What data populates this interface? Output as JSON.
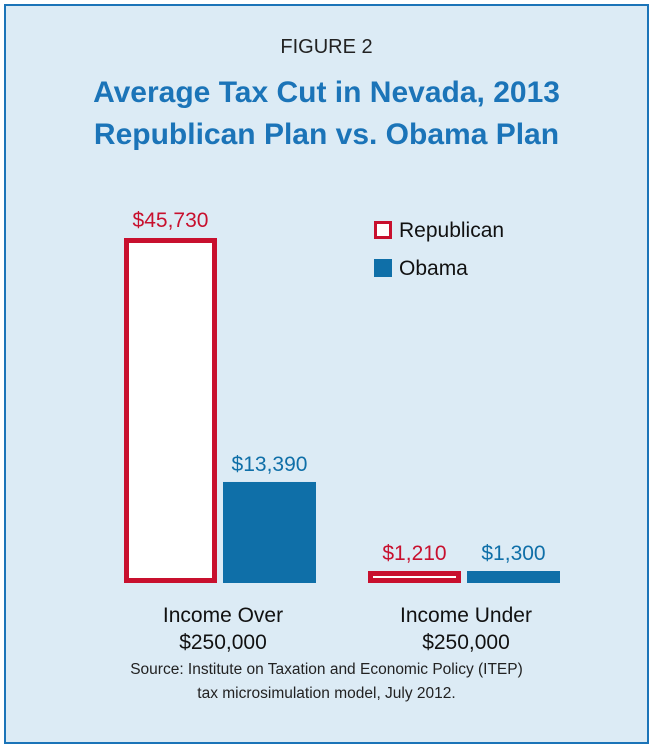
{
  "figure_label": "FIGURE 2",
  "title_line1": "Average Tax Cut in Nevada, 2013",
  "title_line2": "Republican Plan vs. Obama Plan",
  "source_line1": "Source: Institute on Taxation and Economic Policy (ITEP)",
  "source_line2": "tax microsimulation model, July 2012.",
  "colors": {
    "republican": "#c8102e",
    "obama": "#0f6fa8",
    "background": "#dcebf5",
    "title": "#1b74b8"
  },
  "chart_data": {
    "type": "bar",
    "title": "Average Tax Cut in Nevada, 2013",
    "subtitle": "Republican Plan vs. Obama Plan",
    "categories": [
      {
        "line1": "Income Over",
        "line2": "$250,000"
      },
      {
        "line1": "Income Under",
        "line2": "$250,000"
      }
    ],
    "series": [
      {
        "name": "Republican",
        "values": [
          45730,
          1210
        ],
        "labels": [
          "$45,730",
          "$1,210"
        ],
        "style": "outline"
      },
      {
        "name": "Obama",
        "values": [
          13390,
          1300
        ],
        "labels": [
          "$13,390",
          "$1,300"
        ],
        "style": "filled"
      }
    ],
    "legend_position": "top-right",
    "grid": false,
    "axes_visible": false
  }
}
